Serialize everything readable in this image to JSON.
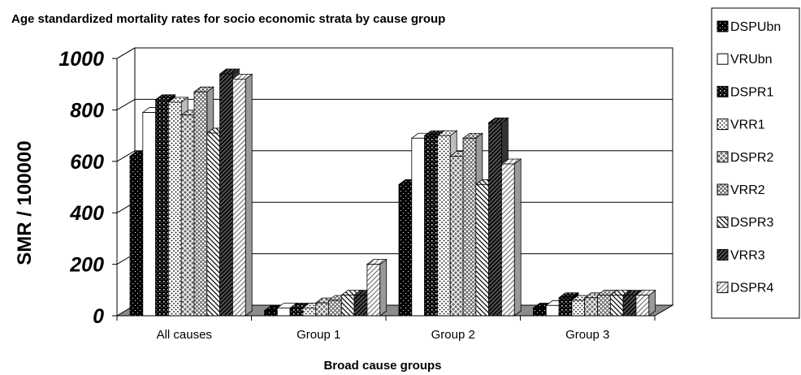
{
  "chart_data": {
    "type": "bar",
    "title": "Age standardized mortality rates for socio economic strata by cause group",
    "xlabel": "Broad cause groups",
    "ylabel": "SMR / 100000",
    "ylim": [
      0,
      1000
    ],
    "yticks": [
      0,
      200,
      400,
      600,
      800,
      1000
    ],
    "categories": [
      "All causes",
      "Group 1",
      "Group 2",
      "Group 3"
    ],
    "grid": true,
    "legend_position": "right",
    "series": [
      {
        "name": "DSPUbn",
        "values": [
          620,
          20,
          510,
          30
        ]
      },
      {
        "name": "VRUbn",
        "values": [
          790,
          30,
          690,
          40
        ]
      },
      {
        "name": "DSPR1",
        "values": [
          840,
          30,
          700,
          70
        ]
      },
      {
        "name": "VRR1",
        "values": [
          830,
          30,
          700,
          60
        ]
      },
      {
        "name": "DSPR2",
        "values": [
          780,
          50,
          620,
          70
        ]
      },
      {
        "name": "VRR2",
        "values": [
          870,
          60,
          690,
          80
        ]
      },
      {
        "name": "DSPR3",
        "values": [
          710,
          80,
          510,
          80
        ]
      },
      {
        "name": "VRR3",
        "values": [
          940,
          80,
          750,
          80
        ]
      },
      {
        "name": "DSPR4",
        "values": [
          920,
          200,
          590,
          80
        ]
      }
    ]
  }
}
